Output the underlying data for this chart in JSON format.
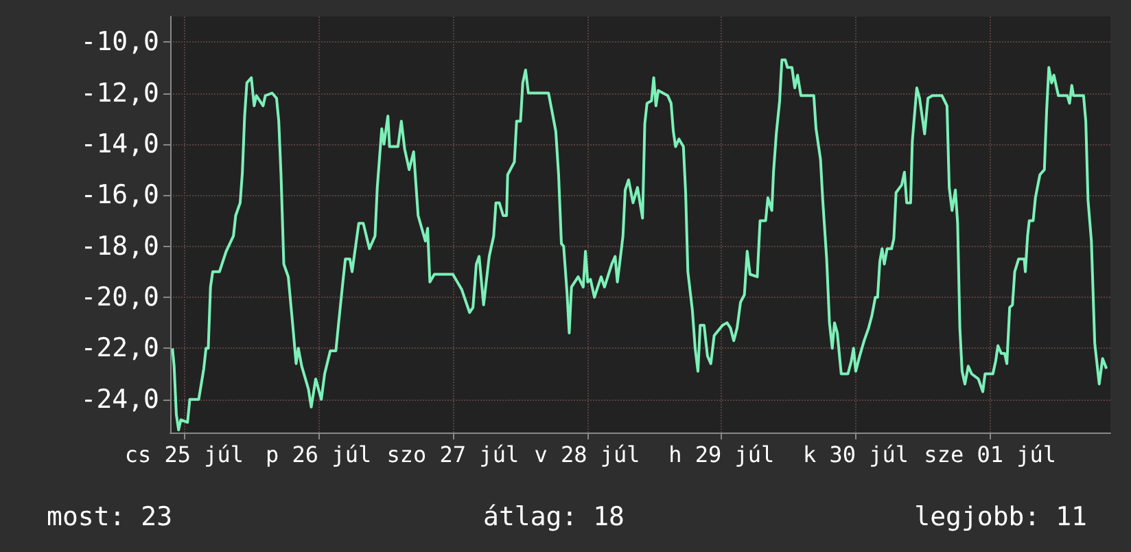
{
  "chart_data": {
    "type": "line",
    "grid": true,
    "marker": "none",
    "line_style": "solid",
    "annotations": [
      "most: 23",
      "átlag: 18",
      "legjobb: 11"
    ],
    "xlim": [
      "--07-25T09:30",
      "--08-01T09:30"
    ],
    "xticks": [
      {
        "value": "--07-25T12:00",
        "label": "cs 25 júl"
      },
      {
        "value": "--07-26T12:00",
        "label": "p 26 júl"
      },
      {
        "value": "--07-27T12:00",
        "label": "szo 27 júl"
      },
      {
        "value": "--07-28T12:00",
        "label": "v 28 júl"
      },
      {
        "value": "--07-29T12:00",
        "label": "h 29 júl"
      },
      {
        "value": "--07-30T12:00",
        "label": "k 30 júl"
      },
      {
        "value": "--07-31T12:00",
        "label": "sze 01 júl"
      }
    ],
    "ylim": [
      -25.3,
      -9
    ],
    "yticks": [
      {
        "value": -24,
        "label": "-24,0"
      },
      {
        "value": -22,
        "label": "-22,0"
      },
      {
        "value": -20,
        "label": "-20,0"
      },
      {
        "value": -18,
        "label": "-18,0"
      },
      {
        "value": -16,
        "label": "-16,0"
      },
      {
        "value": -14,
        "label": "-14,0"
      },
      {
        "value": -12,
        "label": "-12,0"
      },
      {
        "value": -10,
        "label": "-10,0"
      }
    ],
    "series": [
      {
        "color": "#7cf0b8",
        "x": [
          "--07-25T09:54",
          "--07-25T10:12",
          "--07-25T10:36",
          "--07-25T11:00",
          "--07-25T11:24",
          "--07-25T12:36",
          "--07-25T13:00",
          "--07-25T14:36",
          "--07-25T15:30",
          "--07-25T15:54",
          "--07-25T16:18",
          "--07-25T16:42",
          "--07-25T17:06",
          "--07-25T18:18",
          "--07-25T19:30",
          "--07-25T20:48",
          "--07-25T21:12",
          "--07-25T22:00",
          "--07-25T22:24",
          "--07-25T22:48",
          "--07-25T23:12",
          "--07-26T00:00",
          "--07-26T00:30",
          "--07-26T00:54",
          "--07-26T02:06",
          "--07-26T02:30",
          "--07-26T03:42",
          "--07-26T04:30",
          "--07-26T04:54",
          "--07-26T05:18",
          "--07-26T05:48",
          "--07-26T06:36",
          "--07-26T07:24",
          "--07-26T08:00",
          "--07-26T08:24",
          "--07-26T09:00",
          "--07-26T10:12",
          "--07-26T10:42",
          "--07-26T11:30",
          "--07-26T12:30",
          "--07-26T13:06",
          "--07-26T14:06",
          "--07-26T15:06",
          "--07-26T15:36",
          "--07-26T16:24",
          "--07-26T16:48",
          "--07-26T17:36",
          "--07-26T18:00",
          "--07-26T19:12",
          "--07-26T20:00",
          "--07-26T21:06",
          "--07-26T22:06",
          "--07-26T22:30",
          "--07-26T23:18",
          "--07-26T23:42",
          "--07-27T00:24",
          "--07-27T00:42",
          "--07-27T02:12",
          "--07-27T02:48",
          "--07-27T03:24",
          "--07-27T04:12",
          "--07-27T05:00",
          "--07-27T05:48",
          "--07-27T07:06",
          "--07-27T07:30",
          "--07-27T07:54",
          "--07-27T08:42",
          "--07-27T12:00",
          "--07-27T13:36",
          "--07-27T15:00",
          "--07-27T15:36",
          "--07-27T16:12",
          "--07-27T16:42",
          "--07-27T17:30",
          "--07-27T18:30",
          "--07-27T19:18",
          "--07-27T19:42",
          "--07-27T20:18",
          "--07-27T21:00",
          "--07-27T21:36",
          "--07-27T21:48",
          "--07-27T23:00",
          "--07-27T23:24",
          "--07-28T00:06",
          "--07-28T00:30",
          "--07-28T01:00",
          "--07-28T01:30",
          "--07-28T05:06",
          "--07-28T05:48",
          "--07-28T06:24",
          "--07-28T06:54",
          "--07-28T07:24",
          "--07-28T07:48",
          "--07-28T08:24",
          "--07-28T08:48",
          "--07-28T09:12",
          "--07-28T10:24",
          "--07-28T11:18",
          "--07-28T11:42",
          "--07-28T12:06",
          "--07-28T12:36",
          "--07-28T13:18",
          "--07-28T14:30",
          "--07-28T15:06",
          "--07-28T16:24",
          "--07-28T17:00",
          "--07-28T17:24",
          "--07-28T17:48",
          "--07-28T18:24",
          "--07-28T18:48",
          "--07-28T19:24",
          "--07-28T20:12",
          "--07-28T21:00",
          "--07-28T21:54",
          "--07-28T22:18",
          "--07-28T22:42",
          "--07-28T23:30",
          "--07-28T23:54",
          "--07-29T00:18",
          "--07-29T00:42",
          "--07-29T02:24",
          "--07-29T03:00",
          "--07-29T03:24",
          "--07-29T03:48",
          "--07-29T04:24",
          "--07-29T05:12",
          "--07-29T05:36",
          "--07-29T06:00",
          "--07-29T06:48",
          "--07-29T07:18",
          "--07-29T07:48",
          "--07-29T08:12",
          "--07-29T08:54",
          "--07-29T09:30",
          "--07-29T10:06",
          "--07-29T10:42",
          "--07-29T12:12",
          "--07-29T13:00",
          "--07-29T13:36",
          "--07-29T14:12",
          "--07-29T14:48",
          "--07-29T15:24",
          "--07-29T16:06",
          "--07-29T16:36",
          "--07-29T17:06",
          "--07-29T18:24",
          "--07-29T18:54",
          "--07-29T19:54",
          "--07-29T20:18",
          "--07-29T21:00",
          "--07-29T21:18",
          "--07-29T21:48",
          "--07-29T22:24",
          "--07-29T22:48",
          "--07-29T23:24",
          "--07-29T23:48",
          "--07-30T00:36",
          "--07-30T01:06",
          "--07-30T01:36",
          "--07-30T02:12",
          "--07-30T04:30",
          "--07-30T04:54",
          "--07-30T05:42",
          "--07-30T06:06",
          "--07-30T06:48",
          "--07-30T07:18",
          "--07-30T07:48",
          "--07-30T08:12",
          "--07-30T08:42",
          "--07-30T09:24",
          "--07-30T10:36",
          "--07-30T11:12",
          "--07-30T11:36",
          "--07-30T12:00",
          "--07-30T12:42",
          "--07-30T13:30",
          "--07-30T14:18",
          "--07-30T14:54",
          "--07-30T15:30",
          "--07-30T15:54",
          "--07-30T16:18",
          "--07-30T16:42",
          "--07-30T17:06",
          "--07-30T17:36",
          "--07-30T18:24",
          "--07-30T18:48",
          "--07-30T19:12",
          "--07-30T20:12",
          "--07-30T20:42",
          "--07-30T21:06",
          "--07-30T21:48",
          "--07-30T22:06",
          "--07-30T22:54",
          "--07-30T23:24",
          "--07-31T00:18",
          "--07-31T00:54",
          "--07-31T01:42",
          "--07-31T03:24",
          "--07-31T04:18",
          "--07-31T04:42",
          "--07-31T05:12",
          "--07-31T05:48",
          "--07-31T06:12",
          "--07-31T06:36",
          "--07-31T07:00",
          "--07-31T07:30",
          "--07-31T08:06",
          "--07-31T08:42",
          "--07-31T09:54",
          "--07-31T10:42",
          "--07-31T11:06",
          "--07-31T12:30",
          "--07-31T13:00",
          "--07-31T13:24",
          "--07-31T14:00",
          "--07-31T14:36",
          "--07-31T15:00",
          "--07-31T15:30",
          "--07-31T16:00",
          "--07-31T16:24",
          "--07-31T17:06",
          "--07-31T18:06",
          "--07-31T18:18",
          "--07-31T18:42",
          "--07-31T19:00",
          "--07-31T19:42",
          "--07-31T20:06",
          "--07-31T20:54",
          "--07-31T21:42",
          "--07-31T22:06",
          "--07-31T22:30",
          "--07-31T23:00",
          "--07-31T23:24",
          "--08-01T00:12",
          "--08-01T01:48",
          "--08-01T02:12",
          "--08-01T02:36",
          "--08-01T02:54",
          "--08-01T04:42",
          "--08-01T05:06",
          "--08-01T05:30",
          "--08-01T06:06",
          "--08-01T06:42",
          "--08-01T07:30",
          "--08-01T08:06",
          "--08-01T08:48"
        ],
        "values": [
          -22.0,
          -22.7,
          -24.6,
          -25.2,
          -24.8,
          -24.9,
          -24.0,
          -24.0,
          -22.8,
          -22.0,
          -22.0,
          -19.6,
          -19.0,
          -19.0,
          -18.2,
          -17.6,
          -16.8,
          -16.3,
          -15.1,
          -12.9,
          -11.6,
          -11.4,
          -12.5,
          -12.1,
          -12.5,
          -12.1,
          -12.0,
          -12.2,
          -13.1,
          -15.2,
          -18.7,
          -19.2,
          -21.1,
          -22.6,
          -22.0,
          -22.7,
          -23.6,
          -24.3,
          -23.2,
          -24.0,
          -23.0,
          -22.1,
          -22.1,
          -21.0,
          -19.3,
          -18.5,
          -18.5,
          -19.0,
          -17.1,
          -17.1,
          -18.1,
          -17.6,
          -15.7,
          -13.4,
          -14.0,
          -12.9,
          -14.1,
          -14.1,
          -13.1,
          -14.2,
          -15.0,
          -14.3,
          -16.8,
          -17.8,
          -17.3,
          -19.4,
          -19.1,
          -19.1,
          -19.7,
          -20.6,
          -20.4,
          -18.7,
          -18.4,
          -20.3,
          -18.4,
          -17.6,
          -16.3,
          -16.3,
          -16.8,
          -16.8,
          -15.2,
          -14.7,
          -13.1,
          -13.1,
          -11.6,
          -11.1,
          -12.0,
          -12.0,
          -12.8,
          -13.5,
          -15.2,
          -17.9,
          -18.0,
          -19.8,
          -21.4,
          -19.6,
          -19.2,
          -19.6,
          -18.2,
          -19.4,
          -19.3,
          -20.0,
          -19.2,
          -19.6,
          -18.7,
          -18.4,
          -19.4,
          -18.7,
          -17.6,
          -15.8,
          -15.4,
          -16.3,
          -15.7,
          -16.9,
          -13.2,
          -12.4,
          -12.3,
          -11.4,
          -12.5,
          -11.9,
          -12.1,
          -12.4,
          -13.5,
          -14.1,
          -13.8,
          -14.1,
          -15.9,
          -19.0,
          -20.5,
          -22.0,
          -22.9,
          -21.1,
          -21.1,
          -22.3,
          -22.6,
          -21.5,
          -21.1,
          -21.0,
          -21.2,
          -21.7,
          -21.2,
          -20.2,
          -19.9,
          -18.2,
          -19.1,
          -19.2,
          -17.0,
          -17.0,
          -16.1,
          -16.6,
          -15.1,
          -13.6,
          -12.3,
          -10.7,
          -10.7,
          -11.0,
          -11.0,
          -11.8,
          -11.3,
          -12.1,
          -12.1,
          -13.4,
          -14.6,
          -16.2,
          -18.5,
          -21.0,
          -22.0,
          -21.0,
          -21.4,
          -23.0,
          -23.0,
          -22.5,
          -22.0,
          -22.9,
          -22.3,
          -21.7,
          -21.2,
          -20.7,
          -20.0,
          -20.0,
          -18.6,
          -18.1,
          -18.7,
          -18.1,
          -18.1,
          -17.7,
          -15.9,
          -15.6,
          -15.1,
          -16.3,
          -16.3,
          -13.9,
          -11.8,
          -12.2,
          -13.6,
          -12.2,
          -12.1,
          -12.1,
          -12.5,
          -15.7,
          -16.6,
          -15.8,
          -17.1,
          -21.2,
          -22.9,
          -23.4,
          -22.7,
          -23.0,
          -23.2,
          -23.7,
          -23.0,
          -23.0,
          -22.5,
          -21.9,
          -22.2,
          -22.2,
          -22.6,
          -20.4,
          -20.3,
          -19.0,
          -18.5,
          -18.5,
          -19.0,
          -17.6,
          -17.0,
          -17.0,
          -16.1,
          -15.2,
          -15.0,
          -12.7,
          -11.0,
          -11.6,
          -11.3,
          -12.1,
          -12.1,
          -12.4,
          -11.7,
          -12.1,
          -12.1,
          -13.1,
          -16.2,
          -17.8,
          -21.8,
          -23.4,
          -22.4,
          -22.8
        ]
      }
    ]
  }
}
